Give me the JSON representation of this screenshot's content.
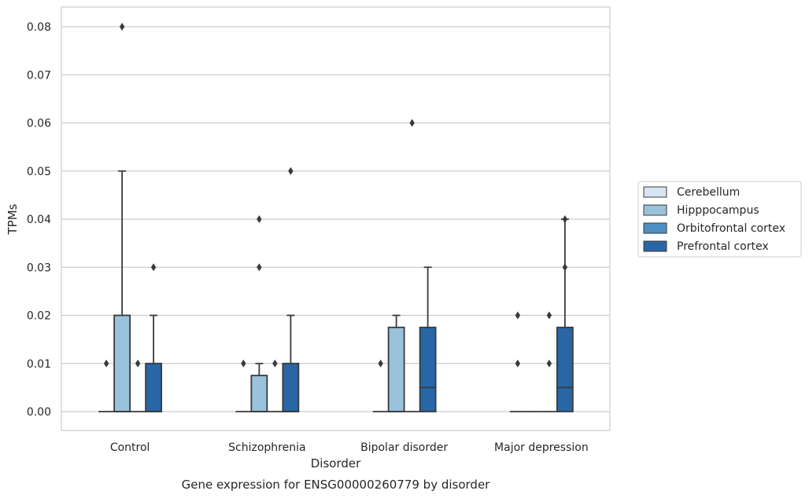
{
  "chart_data": {
    "type": "box",
    "title": "",
    "caption": "Gene expression for ENSG00000260779 by disorder",
    "xlabel": "Disorder",
    "ylabel": "TPMs",
    "ylim": [
      -0.004,
      0.084
    ],
    "yticks": [
      "0.00",
      "0.01",
      "0.02",
      "0.03",
      "0.04",
      "0.05",
      "0.06",
      "0.07",
      "0.08"
    ],
    "ytick_values": [
      0,
      0.01,
      0.02,
      0.03,
      0.04,
      0.05,
      0.06,
      0.07,
      0.08
    ],
    "categories": [
      "Control",
      "Schizophrenia",
      "Bipolar disorder",
      "Major depression"
    ],
    "grid": true,
    "legend_position": "right",
    "series": [
      {
        "name": "Cerebellum",
        "color": "#d6e5f4",
        "boxes": [
          {
            "q1": 0,
            "median": 0,
            "q3": 0,
            "whisker_low": 0,
            "whisker_high": 0,
            "outliers": [
              0.01
            ]
          },
          {
            "q1": 0,
            "median": 0,
            "q3": 0,
            "whisker_low": 0,
            "whisker_high": 0,
            "outliers": [
              0.01
            ]
          },
          {
            "q1": 0,
            "median": 0,
            "q3": 0,
            "whisker_low": 0,
            "whisker_high": 0,
            "outliers": [
              0.01
            ]
          },
          {
            "q1": 0,
            "median": 0,
            "q3": 0,
            "whisker_low": 0,
            "whisker_high": 0,
            "outliers": [
              0.01,
              0.02
            ]
          }
        ]
      },
      {
        "name": "Hipppocampus",
        "color": "#9ac2dc",
        "boxes": [
          {
            "q1": 0,
            "median": 0,
            "q3": 0.02,
            "whisker_low": 0,
            "whisker_high": 0.05,
            "outliers": [
              0.08
            ]
          },
          {
            "q1": 0,
            "median": 0,
            "q3": 0.0075,
            "whisker_low": 0,
            "whisker_high": 0.01,
            "outliers": [
              0.03,
              0.04
            ]
          },
          {
            "q1": 0,
            "median": 0,
            "q3": 0.0175,
            "whisker_low": 0,
            "whisker_high": 0.02,
            "outliers": []
          },
          {
            "q1": 0,
            "median": 0,
            "q3": 0,
            "whisker_low": 0,
            "whisker_high": 0,
            "outliers": []
          }
        ]
      },
      {
        "name": "Orbitofrontal cortex",
        "color": "#4f90c4",
        "boxes": [
          {
            "q1": 0,
            "median": 0,
            "q3": 0,
            "whisker_low": 0,
            "whisker_high": 0,
            "outliers": [
              0.01
            ]
          },
          {
            "q1": 0,
            "median": 0,
            "q3": 0,
            "whisker_low": 0,
            "whisker_high": 0,
            "outliers": [
              0.01
            ]
          },
          {
            "q1": 0,
            "median": 0,
            "q3": 0,
            "whisker_low": 0,
            "whisker_high": 0,
            "outliers": [
              0.06
            ]
          },
          {
            "q1": 0,
            "median": 0,
            "q3": 0,
            "whisker_low": 0,
            "whisker_high": 0,
            "outliers": [
              0.01,
              0.02
            ]
          }
        ]
      },
      {
        "name": "Prefrontal cortex",
        "color": "#2866a6",
        "boxes": [
          {
            "q1": 0,
            "median": 0,
            "q3": 0.01,
            "whisker_low": 0,
            "whisker_high": 0.02,
            "outliers": [
              0.03
            ]
          },
          {
            "q1": 0,
            "median": 0,
            "q3": 0.01,
            "whisker_low": 0,
            "whisker_high": 0.02,
            "outliers": [
              0.05
            ]
          },
          {
            "q1": 0,
            "median": 0.005,
            "q3": 0.0175,
            "whisker_low": 0,
            "whisker_high": 0.03,
            "outliers": []
          },
          {
            "q1": 0,
            "median": 0.005,
            "q3": 0.0175,
            "whisker_low": 0,
            "whisker_high": 0.04,
            "outliers": [
              0.03,
              0.04
            ]
          }
        ]
      }
    ]
  }
}
